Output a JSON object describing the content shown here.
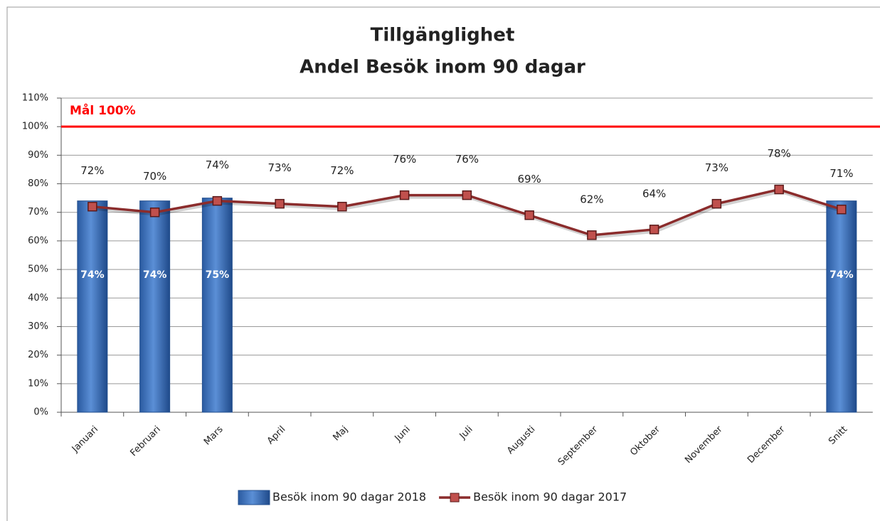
{
  "chart_data": {
    "type": "bar_line",
    "title": "Tillgänglighet",
    "subtitle": "Andel Besök inom 90 dagar",
    "categories": [
      "Januari",
      "Februari",
      "Mars",
      "April",
      "Maj",
      "Juni",
      "Juli",
      "Augusti",
      "September",
      "Oktober",
      "November",
      "December",
      "Snitt"
    ],
    "series": [
      {
        "name": "Besök inom 90 dagar 2018",
        "type": "bar",
        "color": "#3a6fb8",
        "values": [
          74,
          74,
          75,
          null,
          null,
          null,
          null,
          null,
          null,
          null,
          null,
          null,
          74
        ],
        "value_labels": [
          "74%",
          "74%",
          "75%",
          null,
          null,
          null,
          null,
          null,
          null,
          null,
          null,
          null,
          "74%"
        ]
      },
      {
        "name": "Besök inom 90 dagar 2017",
        "type": "line",
        "color": "#8b2c2c",
        "values": [
          72,
          70,
          74,
          73,
          72,
          76,
          76,
          69,
          62,
          64,
          73,
          78,
          71
        ],
        "value_labels": [
          "72%",
          "70%",
          "74%",
          "73%",
          "72%",
          "76%",
          "76%",
          "69%",
          "62%",
          "64%",
          "73%",
          "78%",
          "71%"
        ]
      }
    ],
    "target": {
      "label": "Mål 100%",
      "value": 100,
      "color": "#ff0000"
    },
    "ylim": [
      0,
      110
    ],
    "yticks": [
      {
        "value": 0,
        "label": "0%"
      },
      {
        "value": 10,
        "label": "10%"
      },
      {
        "value": 20,
        "label": "20%"
      },
      {
        "value": 30,
        "label": "30%"
      },
      {
        "value": 40,
        "label": "40%"
      },
      {
        "value": 50,
        "label": "50%"
      },
      {
        "value": 60,
        "label": "60%"
      },
      {
        "value": 70,
        "label": "70%"
      },
      {
        "value": 80,
        "label": "80%"
      },
      {
        "value": 90,
        "label": "90%"
      },
      {
        "value": 100,
        "label": "100%"
      },
      {
        "value": 110,
        "label": "110%"
      }
    ],
    "grid": true
  }
}
